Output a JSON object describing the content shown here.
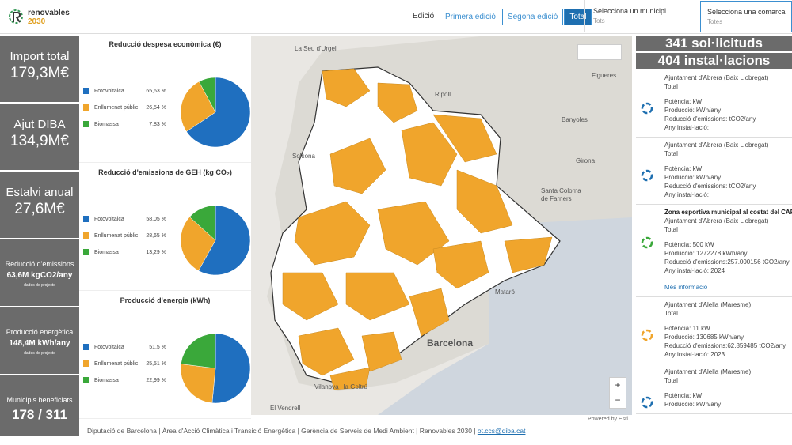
{
  "header": {
    "logo": [
      "renovables",
      "2030"
    ],
    "edition_label": "Edició",
    "edition_buttons": [
      "Primera edició",
      "Segona edició",
      "Total"
    ],
    "municipi": {
      "label": "Selecciona un municipi",
      "value": "Tots"
    },
    "comarca": {
      "label": "Selecciona una comarca",
      "value": "Totes"
    }
  },
  "kpis": [
    {
      "label": "Import total",
      "value": "179,3M€"
    },
    {
      "label": "Ajut DIBA",
      "value": "134,9M€"
    },
    {
      "label": "Estalvi anual",
      "value": "27,6M€"
    },
    {
      "label": "Reducció d'emissions",
      "value": "63,6M kgCO2/any",
      "note": "dades de projecte"
    },
    {
      "label": "Producció energètica",
      "value": "148,4M kWh/any",
      "note": "dades de projecte"
    },
    {
      "label": "Municipis beneficiats",
      "value": "178 / 311"
    }
  ],
  "chart_data": [
    {
      "type": "pie",
      "title": "Reducció despesa econòmica (€)",
      "categories": [
        "Fotovoltaica",
        "Enllumenat públic",
        "Biomassa"
      ],
      "values": [
        65.63,
        26.54,
        7.83
      ],
      "value_labels": [
        "65,63 %",
        "26,54 %",
        "7,83 %"
      ],
      "colors": [
        "#1f6fbf",
        "#f0a52c",
        "#3aa83a"
      ]
    },
    {
      "type": "pie",
      "title": "Reducció d'emissions de GEH  (kg CO₂)",
      "categories": [
        "Fotovoltaica",
        "Enllumenat públic",
        "Biomassa"
      ],
      "values": [
        58.05,
        28.65,
        13.29
      ],
      "value_labels": [
        "58,05 %",
        "28,65 %",
        "13,29 %"
      ],
      "colors": [
        "#1f6fbf",
        "#f0a52c",
        "#3aa83a"
      ]
    },
    {
      "type": "pie",
      "title": "Producció d'energia (kWh)",
      "categories": [
        "Fotovoltaica",
        "Enllumenat públic",
        "Biomassa"
      ],
      "values": [
        51.5,
        25.51,
        22.99
      ],
      "value_labels": [
        "51,5 %",
        "25,51 %",
        "22,99 %"
      ],
      "colors": [
        "#1f6fbf",
        "#f0a52c",
        "#3aa83a"
      ]
    }
  ],
  "map": {
    "places": [
      "La Seu d'Urgell",
      "Figueres",
      "Ripoll",
      "Banyoles",
      "Solsona",
      "Girona",
      "Santa Coloma de Farners",
      "Mataró",
      "Barcelona",
      "El Vendrell",
      "Vilanova i la Geltrú"
    ],
    "credit": "Powered by Esri"
  },
  "summary": [
    "341 sol·licituds",
    "404 instal·lacions"
  ],
  "items": [
    {
      "heading": "Ajuntament d'Abrera (Baix Llobregat)",
      "edition": "Total",
      "lines": [
        "Potència: kW",
        "Producció: kWh/any",
        "Reducció d'emissions: tCO2/any",
        "Any instal·lació:"
      ]
    },
    {
      "heading": "Ajuntament d'Abrera (Baix Llobregat)",
      "edition": "Total",
      "lines": [
        "Potència: kW",
        "Producció: kWh/any",
        "Reducció d'emissions: tCO2/any",
        "Any instal·lació:"
      ]
    },
    {
      "name": "Zona esportiva municipal al costat del CAP",
      "heading": "Ajuntament d'Abrera (Baix Llobregat)",
      "edition": "Total",
      "lines": [
        "Potència: 500 kW",
        "Producció: 1272278 kWh/any",
        "Reducció d'emissions:257.000156 tCO2/any",
        "Any instal·lació: 2024"
      ],
      "link": "Més informació"
    },
    {
      "heading": "Ajuntament d'Alella (Maresme)",
      "edition": "Total",
      "lines": [
        "Potència: 11 kW",
        "Producció: 130685 kWh/any",
        "Reducció d'emissions:62.859485 tCO2/any",
        "Any instal·lació: 2023"
      ]
    },
    {
      "heading": "Ajuntament d'Alella (Maresme)",
      "edition": "Total",
      "lines": [
        "Potència: kW",
        "Producció: kWh/any"
      ]
    }
  ],
  "footer": {
    "text": "Diputació de Barcelona | Àrea d'Acció Climàtica i Transició Energètica | Gerència de Serveis de Medi Ambient | Renovables 2030 | ",
    "email": "ot.ccs@diba.cat"
  }
}
